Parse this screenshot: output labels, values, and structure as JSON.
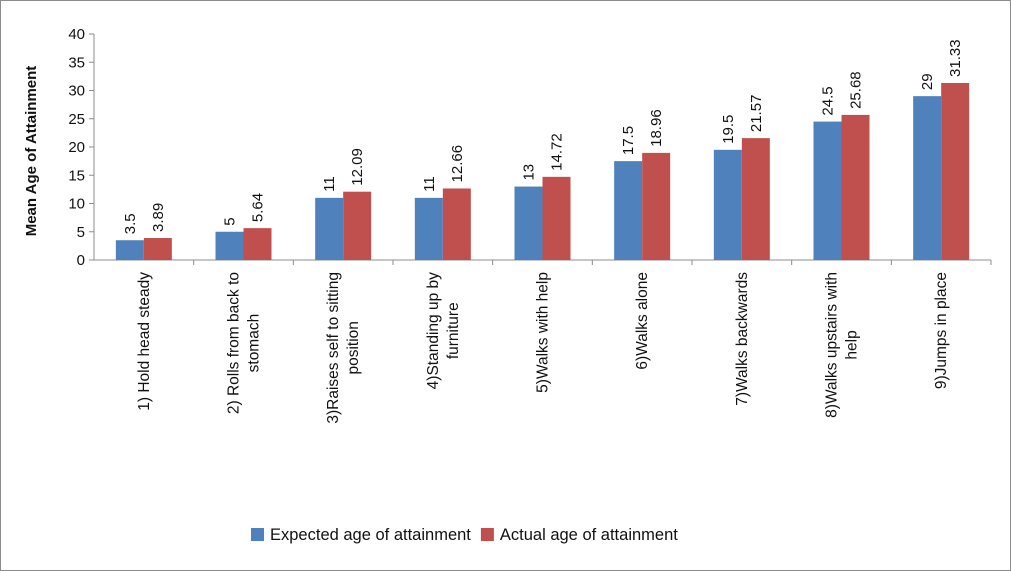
{
  "chart_data": {
    "type": "bar",
    "title": "",
    "xlabel": "",
    "ylabel": "Mean Age of Attainment",
    "ylim": [
      0,
      40
    ],
    "yticks": [
      0,
      5,
      10,
      15,
      20,
      25,
      30,
      35,
      40
    ],
    "grid": false,
    "legend_position": "bottom",
    "categories": [
      [
        "1) Hold head steady"
      ],
      [
        "2) Rolls from back to",
        "stomach"
      ],
      [
        "3)Raises self to sitting",
        "position"
      ],
      [
        "4)Standing up by",
        "furniture"
      ],
      [
        "5)Walks with help"
      ],
      [
        "6)Walks alone"
      ],
      [
        "7)Walks backwards"
      ],
      [
        "8)Walks upstairs with",
        "help"
      ],
      [
        "9)Jumps in place"
      ]
    ],
    "series": [
      {
        "name": "Expected age of attainment",
        "color": "#4f81bd",
        "values": [
          3.5,
          5,
          11,
          11,
          13,
          17.5,
          19.5,
          24.5,
          29
        ],
        "labels": [
          "3.5",
          "5",
          "11",
          "11",
          "13",
          "17.5",
          "19.5",
          "24.5",
          "29"
        ]
      },
      {
        "name": "Actual age of attainment",
        "color": "#c0504d",
        "values": [
          3.89,
          5.64,
          12.09,
          12.66,
          14.72,
          18.96,
          21.57,
          25.68,
          31.33
        ],
        "labels": [
          "3.89",
          "5.64",
          "12.09",
          "12.66",
          "14.72",
          "18.96",
          "21.57",
          "25.68",
          "31.33"
        ]
      }
    ]
  }
}
